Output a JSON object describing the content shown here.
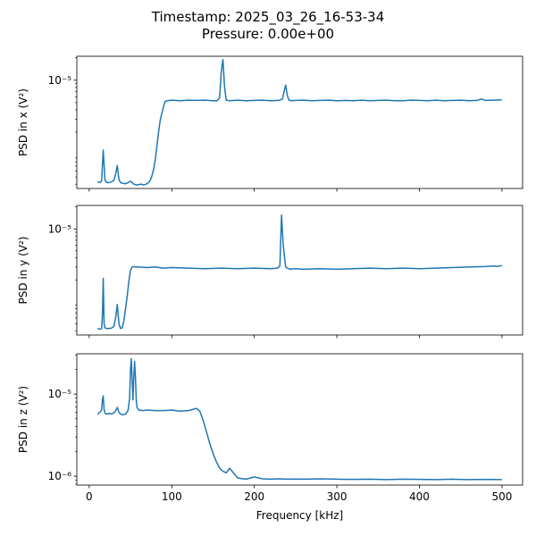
{
  "figure": {
    "title_line1": "Timestamp: 2025_03_26_16-53-34",
    "title_line2": "Pressure: 0.00e+00"
  },
  "chart_data": [
    {
      "type": "line",
      "panel": "x",
      "ylabel": "PSD in x (V²)",
      "xlabel": "",
      "yscale": "log",
      "xlim": [
        -15,
        525
      ],
      "ylim": [
        3.5e-07,
        2.1e-05
      ],
      "x_ticks": [
        0,
        100,
        200,
        300,
        400,
        500
      ],
      "x_tick_labels_visible": false,
      "y_ticks": [
        {
          "value": 1e-05,
          "label": "10⁻⁵"
        }
      ],
      "grid": false,
      "legend": "none",
      "color": "#1f77b4",
      "series": [
        {
          "x": [
            10,
            13,
            15,
            17,
            19,
            21,
            24,
            27,
            30,
            32,
            34,
            36,
            38,
            41,
            44,
            47,
            50,
            52,
            54,
            57,
            60,
            63,
            66,
            69,
            72,
            74,
            76,
            78,
            80,
            82,
            84,
            86,
            88,
            90,
            92,
            95,
            100,
            110,
            120,
            130,
            140,
            150,
            155,
            158,
            160,
            162,
            164,
            166,
            170,
            180,
            190,
            200,
            210,
            220,
            230,
            234,
            236,
            238,
            240,
            242,
            245,
            250,
            260,
            270,
            280,
            290,
            300,
            310,
            320,
            330,
            340,
            350,
            360,
            370,
            380,
            390,
            400,
            410,
            420,
            430,
            440,
            450,
            460,
            470,
            475,
            480,
            490,
            500
          ],
          "y": [
            4.3e-07,
            4.2e-07,
            4.4e-07,
            1.15e-06,
            4.6e-07,
            4.2e-07,
            4.2e-07,
            4.3e-07,
            4.5e-07,
            5.5e-07,
            7.1e-07,
            4.6e-07,
            4.2e-07,
            4.1e-07,
            4.05e-07,
            4.2e-07,
            4.4e-07,
            4.2e-07,
            4e-07,
            3.9e-07,
            3.95e-07,
            4e-07,
            3.9e-07,
            4e-07,
            4.2e-07,
            4.5e-07,
            5.2e-07,
            6.3e-07,
            8.5e-07,
            1.3e-06,
            2e-06,
            2.9e-06,
            3.6e-06,
            4.4e-06,
            5.2e-06,
            5.3e-06,
            5.4e-06,
            5.3e-06,
            5.4e-06,
            5.35e-06,
            5.4e-06,
            5.3e-06,
            5.3e-06,
            5.8e-06,
            1.3e-05,
            1.9e-05,
            8e-06,
            5.4e-06,
            5.3e-06,
            5.4e-06,
            5.3e-06,
            5.35e-06,
            5.4e-06,
            5.3e-06,
            5.35e-06,
            5.6e-06,
            7e-06,
            8.6e-06,
            6.2e-06,
            5.4e-06,
            5.3e-06,
            5.35e-06,
            5.4e-06,
            5.3e-06,
            5.35e-06,
            5.4e-06,
            5.3e-06,
            5.35e-06,
            5.3e-06,
            5.4e-06,
            5.3e-06,
            5.35e-06,
            5.4e-06,
            5.3e-06,
            5.3e-06,
            5.4e-06,
            5.35e-06,
            5.3e-06,
            5.4e-06,
            5.3e-06,
            5.35e-06,
            5.4e-06,
            5.3e-06,
            5.35e-06,
            5.6e-06,
            5.35e-06,
            5.4e-06,
            5.45e-06
          ]
        }
      ]
    },
    {
      "type": "line",
      "panel": "y",
      "ylabel": "PSD in y (V²)",
      "xlabel": "",
      "yscale": "log",
      "xlim": [
        -15,
        525
      ],
      "ylim": [
        3.5e-07,
        2.1e-05
      ],
      "x_ticks": [
        0,
        100,
        200,
        300,
        400,
        500
      ],
      "x_tick_labels_visible": false,
      "y_ticks": [
        {
          "value": 1e-05,
          "label": "10⁻⁵"
        }
      ],
      "grid": false,
      "legend": "none",
      "color": "#1f77b4",
      "series": [
        {
          "x": [
            10,
            13,
            15,
            16,
            17,
            18,
            19,
            21,
            24,
            27,
            30,
            32,
            34,
            36,
            38,
            40,
            42,
            44,
            46,
            48,
            50,
            52,
            54,
            56,
            60,
            70,
            80,
            90,
            100,
            120,
            140,
            160,
            180,
            200,
            220,
            228,
            231,
            233,
            235,
            237,
            238,
            240,
            243,
            250,
            260,
            280,
            300,
            320,
            340,
            360,
            380,
            400,
            420,
            440,
            460,
            480,
            490,
            495,
            500
          ],
          "y": [
            4.3e-07,
            4.2e-07,
            4.3e-07,
            6.5e-07,
            2.1e-06,
            5e-07,
            4.4e-07,
            4.3e-07,
            4.3e-07,
            4.35e-07,
            4.6e-07,
            6e-07,
            9.2e-07,
            5e-07,
            4.3e-07,
            4.4e-07,
            5.5e-07,
            8e-07,
            1.2e-06,
            1.9e-06,
            2.7e-06,
            3e-06,
            3.05e-06,
            3e-06,
            3e-06,
            2.95e-06,
            3e-06,
            2.9e-06,
            2.95e-06,
            2.9e-06,
            2.85e-06,
            2.9e-06,
            2.85e-06,
            2.9e-06,
            2.85e-06,
            2.9e-06,
            3.1e-06,
            1.55e-05,
            6e-06,
            3.7e-06,
            3e-06,
            2.9e-06,
            2.8e-06,
            2.85e-06,
            2.8e-06,
            2.85e-06,
            2.8e-06,
            2.85e-06,
            2.9e-06,
            2.85e-06,
            2.9e-06,
            2.85e-06,
            2.9e-06,
            2.95e-06,
            3e-06,
            3.05e-06,
            3.1e-06,
            3.05e-06,
            3.15e-06
          ]
        }
      ]
    },
    {
      "type": "line",
      "panel": "z",
      "ylabel": "PSD in z (V²)",
      "xlabel": "Frequency [kHz]",
      "yscale": "log",
      "xlim": [
        -15,
        525
      ],
      "ylim": [
        7.8e-07,
        3.1e-05
      ],
      "x_ticks": [
        0,
        100,
        200,
        300,
        400,
        500
      ],
      "x_tick_labels_visible": true,
      "y_ticks": [
        {
          "value": 1e-06,
          "label": "10⁻⁶"
        },
        {
          "value": 1e-05,
          "label": "10⁻⁵"
        }
      ],
      "grid": false,
      "legend": "none",
      "color": "#1f77b4",
      "series": [
        {
          "x": [
            10,
            13,
            15,
            16,
            17,
            18,
            19,
            21,
            24,
            27,
            30,
            33,
            34,
            36,
            38,
            40,
            44,
            47,
            49,
            50,
            51,
            52,
            53,
            54,
            55,
            56,
            57,
            58,
            60,
            65,
            70,
            80,
            90,
            100,
            110,
            120,
            125,
            130,
            134,
            138,
            142,
            146,
            150,
            154,
            158,
            162,
            166,
            170,
            180,
            190,
            200,
            210,
            220,
            230,
            240,
            250,
            260,
            280,
            300,
            320,
            340,
            360,
            380,
            400,
            420,
            440,
            460,
            480,
            500
          ],
          "y": [
            5.7e-06,
            6e-06,
            6.4e-06,
            8.5e-06,
            9.5e-06,
            6.5e-06,
            5.9e-06,
            5.7e-06,
            5.8e-06,
            5.75e-06,
            5.9e-06,
            6.5e-06,
            6.9e-06,
            6e-06,
            5.7e-06,
            5.6e-06,
            5.7e-06,
            6.3e-06,
            9e-06,
            2e-05,
            2.7e-05,
            1.5e-05,
            8.5e-06,
            1.6e-05,
            2.5e-05,
            1.6e-05,
            8.5e-06,
            6.8e-06,
            6.4e-06,
            6.3e-06,
            6.4e-06,
            6.3e-06,
            6.3e-06,
            6.4e-06,
            6.2e-06,
            6.3e-06,
            6.5e-06,
            6.7e-06,
            6.2e-06,
            4.8e-06,
            3.5e-06,
            2.5e-06,
            1.9e-06,
            1.5e-06,
            1.25e-06,
            1.15e-06,
            1.1e-06,
            1.25e-06,
            9.5e-07,
            9.2e-07,
            9.8e-07,
            9.3e-07,
            9.2e-07,
            9.3e-07,
            9.2e-07,
            9.25e-07,
            9.2e-07,
            9.3e-07,
            9.2e-07,
            9.15e-07,
            9.2e-07,
            9.1e-07,
            9.2e-07,
            9.15e-07,
            9.1e-07,
            9.2e-07,
            9.1e-07,
            9.15e-07,
            9.1e-07
          ]
        }
      ]
    }
  ]
}
